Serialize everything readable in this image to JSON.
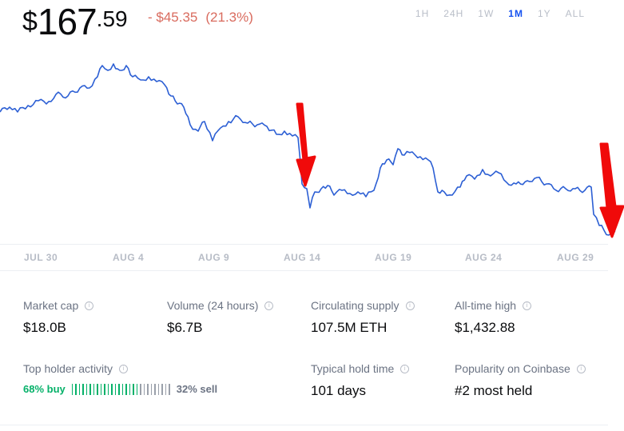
{
  "price": {
    "currency": "$",
    "whole": "167",
    "decimal": ".59"
  },
  "change": {
    "amount": "- $45.35",
    "percent": "(21.3%)"
  },
  "ranges": [
    {
      "label": "1H",
      "active": false
    },
    {
      "label": "24H",
      "active": false
    },
    {
      "label": "1W",
      "active": false
    },
    {
      "label": "1M",
      "active": true
    },
    {
      "label": "1Y",
      "active": false
    },
    {
      "label": "ALL",
      "active": false
    }
  ],
  "x_axis_labels": [
    "JUL 30",
    "AUG 4",
    "AUG 9",
    "AUG 14",
    "AUG 19",
    "AUG 24",
    "AUG 29"
  ],
  "stats": {
    "market_cap": {
      "label": "Market cap",
      "value": "$18.0B"
    },
    "volume": {
      "label": "Volume (24 hours)",
      "value": "$6.7B"
    },
    "supply": {
      "label": "Circulating supply",
      "value": "107.5M ETH"
    },
    "ath": {
      "label": "All-time high",
      "value": "$1,432.88"
    },
    "holder": {
      "label": "Top holder activity",
      "buy": "68% buy",
      "sell": "32% sell",
      "buy_fraction": 0.68
    },
    "hold_time": {
      "label": "Typical hold time",
      "value": "101 days"
    },
    "popularity": {
      "label": "Popularity on Coinbase",
      "value": "#2 most held"
    }
  },
  "colors": {
    "line": "#2c5fd4",
    "annotation": "#f00a0a",
    "buy": "#05b169",
    "negative": "#d96b5e",
    "active_tab": "#1652f0"
  }
}
